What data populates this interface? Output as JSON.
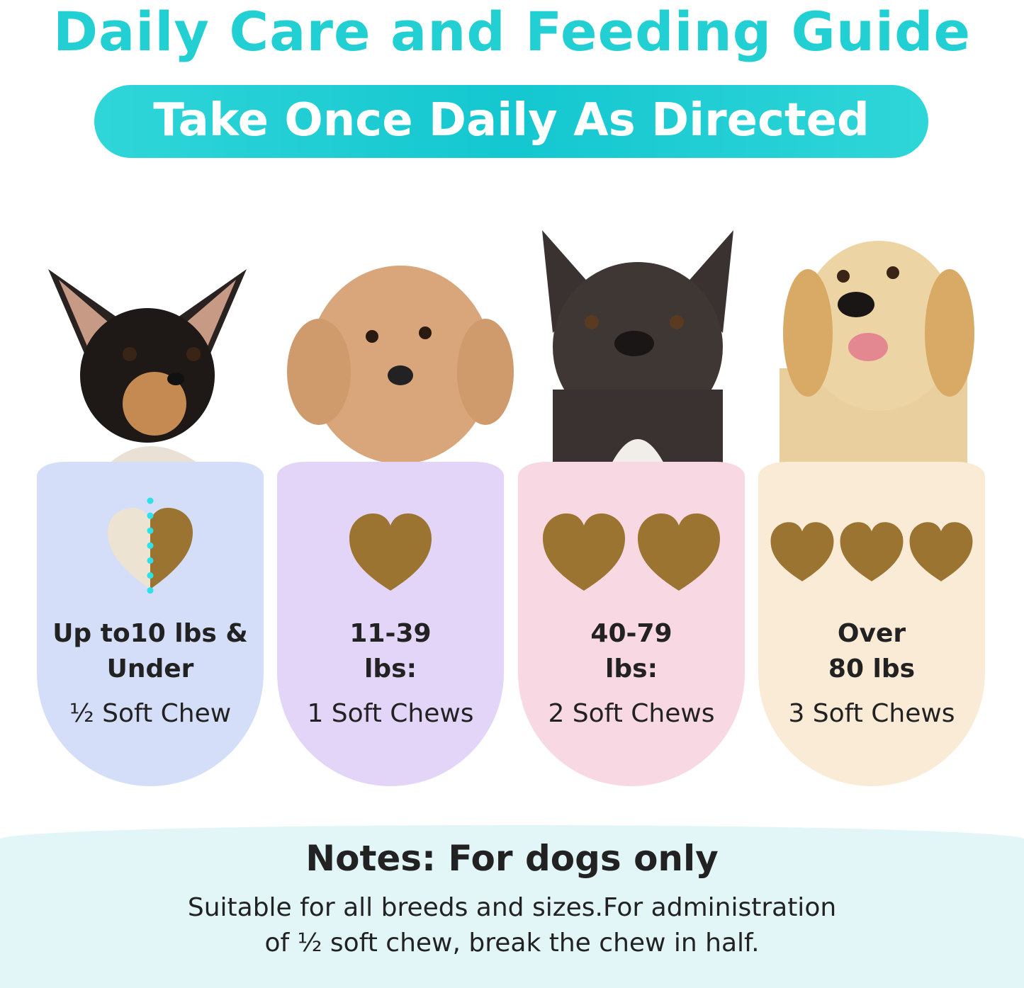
{
  "title": "Daily Care and Feeding Guide",
  "subtitle": "Take Once Daily As Directed",
  "colors": {
    "accent": "#22cfd2",
    "chew": "#9a7430",
    "half_chew": "#ece3d2"
  },
  "cards": [
    {
      "range_line1": "Up to10 lbs &",
      "range_line2": "Under",
      "dose": "½ Soft Chew",
      "chews": 0.5,
      "bg": "#d5def9",
      "dog": "chihuahua"
    },
    {
      "range_line1": "11-39",
      "range_line2": "lbs:",
      "dose": "1 Soft Chews",
      "chews": 1,
      "bg": "#e3d5f8",
      "dog": "toy poodle"
    },
    {
      "range_line1": "40-79",
      "range_line2": "lbs:",
      "dose": "2 Soft Chews",
      "chews": 2,
      "bg": "#f8d8e2",
      "dog": "french bulldog"
    },
    {
      "range_line1": "Over",
      "range_line2": "80 lbs",
      "dose": "3 Soft Chews",
      "chews": 3,
      "bg": "#faebd7",
      "dog": "golden retriever"
    }
  ],
  "notes": {
    "title": "Notes: For dogs only",
    "line1": "Suitable for all breeds and sizes.For administration",
    "line2": "of ½ soft chew, break the chew in half."
  }
}
